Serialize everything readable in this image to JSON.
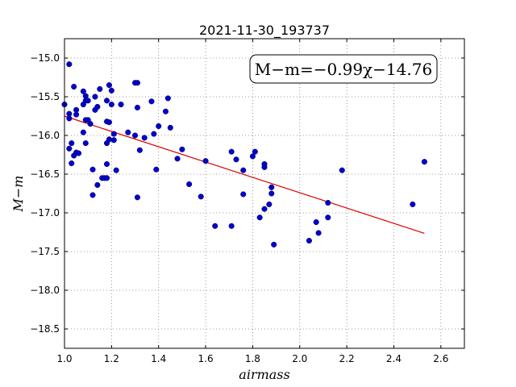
{
  "chart_data": {
    "type": "scatter",
    "title": "2021-11-30_193737",
    "xlabel": "airmass",
    "ylabel": "M−m",
    "xlim": [
      1.0,
      2.7
    ],
    "ylim": [
      -18.75,
      -14.75
    ],
    "y_inverted": true,
    "grid": true,
    "x_ticks": [
      "1.0",
      "1.2",
      "1.4",
      "1.6",
      "1.8",
      "2.0",
      "2.2",
      "2.4",
      "2.6"
    ],
    "y_ticks": [
      "−15.0",
      "−15.5",
      "−16.0",
      "−16.5",
      "−17.0",
      "−17.5",
      "−18.0",
      "−18.5"
    ],
    "annotation": "M−m=−0.99χ−14.76",
    "point_color": "#0000cc",
    "fit_color": "#dd0000",
    "fit": {
      "slope": -0.99,
      "intercept": -14.76,
      "x_range": [
        1.0,
        2.53
      ]
    },
    "points": [
      [
        1.0,
        -15.6
      ],
      [
        1.02,
        -15.08
      ],
      [
        1.02,
        -15.72
      ],
      [
        1.02,
        -15.78
      ],
      [
        1.02,
        -16.17
      ],
      [
        1.03,
        -16.1
      ],
      [
        1.03,
        -16.36
      ],
      [
        1.04,
        -15.37
      ],
      [
        1.04,
        -16.26
      ],
      [
        1.05,
        -15.67
      ],
      [
        1.05,
        -15.73
      ],
      [
        1.05,
        -16.22
      ],
      [
        1.06,
        -16.23
      ],
      [
        1.08,
        -15.43
      ],
      [
        1.08,
        -15.6
      ],
      [
        1.08,
        -15.96
      ],
      [
        1.09,
        -15.49
      ],
      [
        1.09,
        -15.55
      ],
      [
        1.09,
        -16.1
      ],
      [
        1.09,
        -15.8
      ],
      [
        1.1,
        -15.55
      ],
      [
        1.1,
        -15.8
      ],
      [
        1.11,
        -15.85
      ],
      [
        1.12,
        -16.44
      ],
      [
        1.12,
        -16.77
      ],
      [
        1.13,
        -15.5
      ],
      [
        1.13,
        -15.67
      ],
      [
        1.14,
        -16.64
      ],
      [
        1.14,
        -15.63
      ],
      [
        1.15,
        -15.4
      ],
      [
        1.16,
        -16.55
      ],
      [
        1.17,
        -16.55
      ],
      [
        1.18,
        -15.55
      ],
      [
        1.18,
        -15.82
      ],
      [
        1.18,
        -16.1
      ],
      [
        1.18,
        -16.37
      ],
      [
        1.18,
        -16.55
      ],
      [
        1.19,
        -15.35
      ],
      [
        1.19,
        -16.05
      ],
      [
        1.19,
        -15.83
      ],
      [
        1.2,
        -15.6
      ],
      [
        1.2,
        -15.42
      ],
      [
        1.21,
        -16.06
      ],
      [
        1.21,
        -15.98
      ],
      [
        1.22,
        -16.45
      ],
      [
        1.24,
        -15.6
      ],
      [
        1.27,
        -15.96
      ],
      [
        1.3,
        -15.32
      ],
      [
        1.3,
        -16.0
      ],
      [
        1.31,
        -15.32
      ],
      [
        1.31,
        -15.64
      ],
      [
        1.31,
        -16.8
      ],
      [
        1.32,
        -16.19
      ],
      [
        1.34,
        -16.03
      ],
      [
        1.37,
        -15.56
      ],
      [
        1.38,
        -15.98
      ],
      [
        1.39,
        -16.44
      ],
      [
        1.4,
        -15.88
      ],
      [
        1.43,
        -15.69
      ],
      [
        1.44,
        -15.52
      ],
      [
        1.45,
        -15.9
      ],
      [
        1.48,
        -16.3
      ],
      [
        1.5,
        -16.18
      ],
      [
        1.53,
        -16.63
      ],
      [
        1.58,
        -16.79
      ],
      [
        1.6,
        -16.33
      ],
      [
        1.64,
        -17.17
      ],
      [
        1.71,
        -16.21
      ],
      [
        1.71,
        -17.17
      ],
      [
        1.73,
        -16.31
      ],
      [
        1.76,
        -16.76
      ],
      [
        1.76,
        -16.45
      ],
      [
        1.8,
        -16.27
      ],
      [
        1.81,
        -16.21
      ],
      [
        1.83,
        -17.06
      ],
      [
        1.85,
        -16.41
      ],
      [
        1.85,
        -16.37
      ],
      [
        1.85,
        -16.95
      ],
      [
        1.87,
        -16.89
      ],
      [
        1.88,
        -16.67
      ],
      [
        1.88,
        -16.75
      ],
      [
        1.89,
        -17.41
      ],
      [
        2.04,
        -17.36
      ],
      [
        2.07,
        -17.12
      ],
      [
        2.08,
        -17.26
      ],
      [
        2.12,
        -16.87
      ],
      [
        2.12,
        -17.06
      ],
      [
        2.18,
        -16.45
      ],
      [
        2.48,
        -16.89
      ],
      [
        2.53,
        -16.34
      ]
    ]
  }
}
